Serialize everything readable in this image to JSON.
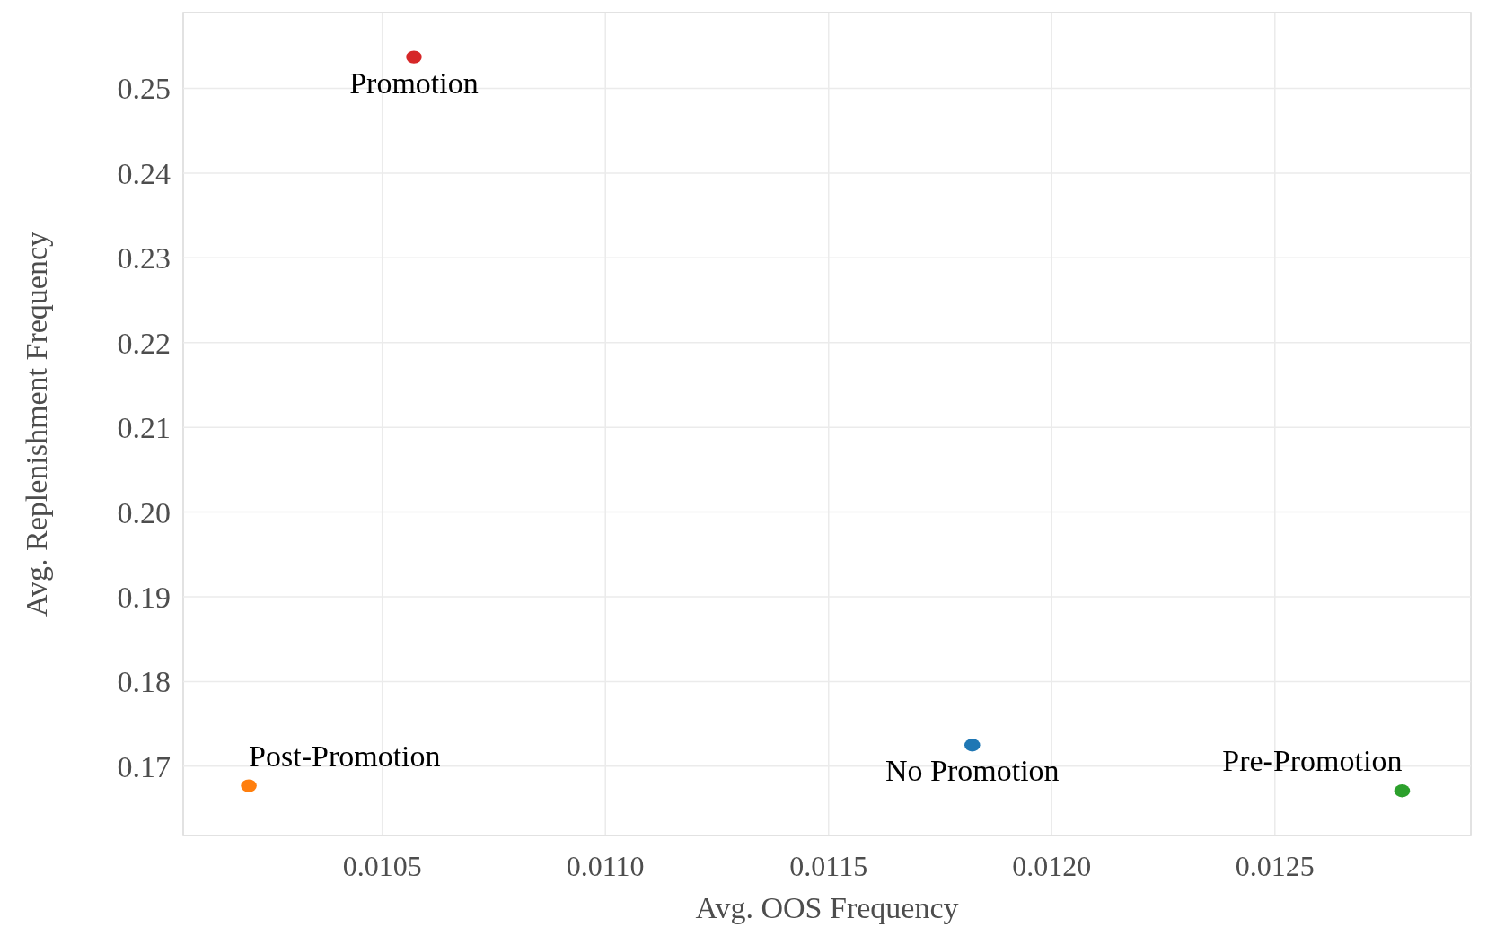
{
  "chart_data": {
    "type": "scatter",
    "xlabel": "Avg. OOS Frequency",
    "ylabel": "Avg. Replenishment Frequency",
    "xlim": [
      0.010054,
      0.012939
    ],
    "ylim": [
      0.16183,
      0.25895
    ],
    "xticks": [
      {
        "value": 0.0105,
        "label": "0.0105"
      },
      {
        "value": 0.011,
        "label": "0.0110"
      },
      {
        "value": 0.0115,
        "label": "0.0115"
      },
      {
        "value": 0.012,
        "label": "0.0120"
      },
      {
        "value": 0.0125,
        "label": "0.0125"
      }
    ],
    "yticks": [
      {
        "value": 0.17,
        "label": "0.17"
      },
      {
        "value": 0.18,
        "label": "0.18"
      },
      {
        "value": 0.19,
        "label": "0.19"
      },
      {
        "value": 0.2,
        "label": "0.20"
      },
      {
        "value": 0.21,
        "label": "0.21"
      },
      {
        "value": 0.22,
        "label": "0.22"
      },
      {
        "value": 0.23,
        "label": "0.23"
      },
      {
        "value": 0.24,
        "label": "0.24"
      },
      {
        "value": 0.25,
        "label": "0.25"
      }
    ],
    "grid": true,
    "marker": "circle",
    "series": [
      {
        "name": "No Promotion",
        "color": "#1f77b4",
        "x": [
          0.011822
        ],
        "values": [
          0.1725
        ]
      },
      {
        "name": "Post-Promotion",
        "color": "#ff7f0e",
        "x": [
          0.010201
        ],
        "values": [
          0.1677
        ]
      },
      {
        "name": "Pre-Promotion",
        "color": "#2ca02c",
        "x": [
          0.012785
        ],
        "values": [
          0.1671
        ]
      },
      {
        "name": "Promotion",
        "color": "#d62728",
        "x": [
          0.010571
        ],
        "values": [
          0.2537
        ]
      }
    ]
  }
}
